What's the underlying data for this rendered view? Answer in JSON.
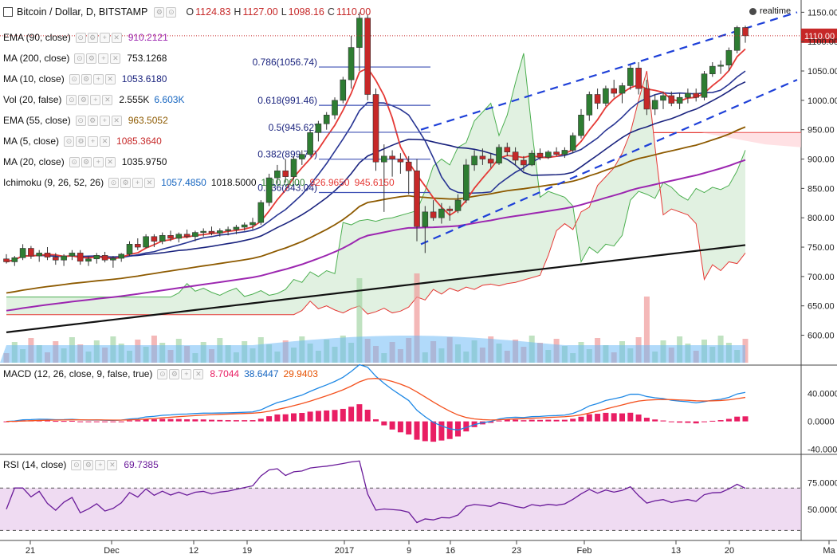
{
  "header": {
    "symbol": "Bitcoin / Dollar, D, BITSTAMP",
    "o_label": "O",
    "o": "1124.83",
    "h_label": "H",
    "h": "1127.00",
    "l_label": "L",
    "l": "1098.16",
    "c_label": "C",
    "c": "1110.00",
    "realtime": "realtime",
    "alert_icon": "alert-clock-icon"
  },
  "indicators": [
    {
      "name": "EMA (90, close)",
      "values": [
        "910.2121"
      ],
      "colors": [
        "#9c27b0"
      ]
    },
    {
      "name": "MA (200, close)",
      "values": [
        "753.1268"
      ],
      "colors": [
        "#111111"
      ]
    },
    {
      "name": "MA (10, close)",
      "values": [
        "1053.6180"
      ],
      "colors": [
        "#1a237e"
      ]
    },
    {
      "name": "Vol (20, false)",
      "values": [
        "2.555K",
        "6.603K"
      ],
      "colors": [
        "#111111",
        "#1565c0"
      ]
    },
    {
      "name": "EMA (55, close)",
      "values": [
        "963.5052"
      ],
      "colors": [
        "#8d5a00"
      ]
    },
    {
      "name": "MA (5, close)",
      "values": [
        "1085.3640"
      ],
      "colors": [
        "#c62828"
      ]
    },
    {
      "name": "MA (20, close)",
      "values": [
        "1035.9750"
      ],
      "colors": [
        "#111111"
      ]
    },
    {
      "name": "Ichimoku (9, 26, 52, 26)",
      "values": [
        "1057.4850",
        "1018.5000",
        "1110.0000",
        "926.9650",
        "945.6150"
      ],
      "colors": [
        "#1565c0",
        "#111111",
        "#2e7d32",
        "#e53935",
        "#e53935"
      ]
    }
  ],
  "macd_legend": {
    "name": "MACD (12, 26, close, 9, false, true)",
    "values": [
      "8.7044",
      "38.6447",
      "29.9403"
    ],
    "colors": [
      "#e91e63",
      "#1565c0",
      "#e65100"
    ]
  },
  "rsi_legend": {
    "name": "RSI (14, close)",
    "values": [
      "69.7385"
    ],
    "colors": [
      "#6a1b9a"
    ]
  },
  "chart_data": {
    "type": "candlestick",
    "price_axis": {
      "ticks": [
        "1150.00",
        "1100.00",
        "1050.00",
        "1000.00",
        "950.00",
        "900.00",
        "850.00",
        "800.00",
        "750.00",
        "700.00",
        "650.00",
        "600.00"
      ],
      "range": [
        560,
        1160
      ]
    },
    "last_price_label": "1110.00",
    "macd_axis": {
      "ticks": [
        "40.0000",
        "0.0000",
        "-40.0000"
      ],
      "range": [
        -45,
        75
      ]
    },
    "rsi_axis": {
      "ticks": [
        "75.0000",
        "50.0000"
      ],
      "range": [
        22,
        98
      ],
      "levels": [
        70,
        30
      ]
    },
    "x_labels": [
      "21",
      "Dec",
      "12",
      "19",
      "2017",
      "9",
      "16",
      "23",
      "Feb",
      "13",
      "20",
      "Ma"
    ],
    "fibonacci": [
      {
        "label": "0.786(1056.74)",
        "price": 1056.74
      },
      {
        "label": "0.618(991.46)",
        "price": 991.46
      },
      {
        "label": "0.5(945.62)",
        "price": 945.62
      },
      {
        "label": "0.382(899.77)",
        "price": 899.77
      },
      {
        "label": "0.236(843.04)",
        "price": 843.04
      }
    ],
    "candles": [
      [
        730,
        738,
        722,
        725
      ],
      [
        725,
        735,
        718,
        732
      ],
      [
        732,
        755,
        728,
        748
      ],
      [
        748,
        752,
        730,
        735
      ],
      [
        735,
        745,
        725,
        740
      ],
      [
        740,
        750,
        728,
        733
      ],
      [
        733,
        740,
        720,
        728
      ],
      [
        728,
        738,
        718,
        735
      ],
      [
        735,
        745,
        728,
        740
      ],
      [
        740,
        745,
        720,
        726
      ],
      [
        726,
        735,
        718,
        730
      ],
      [
        730,
        740,
        722,
        736
      ],
      [
        736,
        742,
        724,
        728
      ],
      [
        728,
        735,
        715,
        731
      ],
      [
        731,
        740,
        725,
        738
      ],
      [
        738,
        760,
        735,
        755
      ],
      [
        755,
        765,
        745,
        750
      ],
      [
        750,
        772,
        748,
        768
      ],
      [
        768,
        772,
        750,
        760
      ],
      [
        760,
        775,
        755,
        770
      ],
      [
        770,
        778,
        760,
        765
      ],
      [
        765,
        775,
        758,
        772
      ],
      [
        772,
        780,
        765,
        768
      ],
      [
        768,
        778,
        760,
        775
      ],
      [
        775,
        782,
        768,
        777
      ],
      [
        777,
        785,
        770,
        774
      ],
      [
        774,
        782,
        768,
        778
      ],
      [
        778,
        785,
        770,
        780
      ],
      [
        780,
        788,
        772,
        784
      ],
      [
        784,
        792,
        778,
        788
      ],
      [
        788,
        800,
        780,
        792
      ],
      [
        792,
        830,
        788,
        826
      ],
      [
        826,
        875,
        820,
        868
      ],
      [
        868,
        890,
        858,
        880
      ],
      [
        880,
        900,
        860,
        870
      ],
      [
        870,
        905,
        865,
        900
      ],
      [
        900,
        915,
        890,
        908
      ],
      [
        908,
        950,
        905,
        945
      ],
      [
        945,
        965,
        930,
        960
      ],
      [
        960,
        980,
        950,
        975
      ],
      [
        975,
        1005,
        968,
        1000
      ],
      [
        1000,
        1040,
        995,
        1035
      ],
      [
        1035,
        1110,
        1020,
        1090
      ],
      [
        1090,
        1150,
        1050,
        1140
      ],
      [
        1140,
        1145,
        1000,
        1010
      ],
      [
        1010,
        1020,
        880,
        895
      ],
      [
        895,
        925,
        810,
        905
      ],
      [
        905,
        915,
        870,
        900
      ],
      [
        900,
        910,
        875,
        895
      ],
      [
        895,
        905,
        840,
        880
      ],
      [
        880,
        900,
        760,
        785
      ],
      [
        785,
        820,
        740,
        810
      ],
      [
        810,
        830,
        795,
        800
      ],
      [
        800,
        825,
        790,
        815
      ],
      [
        815,
        820,
        795,
        812
      ],
      [
        812,
        840,
        808,
        830
      ],
      [
        830,
        900,
        825,
        890
      ],
      [
        890,
        915,
        880,
        905
      ],
      [
        905,
        918,
        890,
        900
      ],
      [
        900,
        910,
        885,
        893
      ],
      [
        893,
        925,
        890,
        920
      ],
      [
        920,
        928,
        905,
        912
      ],
      [
        912,
        920,
        890,
        898
      ],
      [
        898,
        905,
        880,
        890
      ],
      [
        890,
        915,
        888,
        910
      ],
      [
        910,
        918,
        898,
        903
      ],
      [
        903,
        915,
        900,
        912
      ],
      [
        912,
        920,
        905,
        908
      ],
      [
        908,
        920,
        902,
        915
      ],
      [
        915,
        945,
        910,
        940
      ],
      [
        940,
        985,
        935,
        975
      ],
      [
        975,
        1015,
        965,
        1010
      ],
      [
        1010,
        1020,
        985,
        995
      ],
      [
        995,
        1025,
        990,
        1020
      ],
      [
        1020,
        1035,
        1005,
        1012
      ],
      [
        1012,
        1030,
        995,
        1025
      ],
      [
        1025,
        1060,
        1018,
        1055
      ],
      [
        1055,
        1065,
        1010,
        1020
      ],
      [
        1020,
        1035,
        975,
        985
      ],
      [
        985,
        1010,
        975,
        1000
      ],
      [
        1000,
        1015,
        985,
        1008
      ],
      [
        1008,
        1015,
        990,
        995
      ],
      [
        995,
        1012,
        985,
        1005
      ],
      [
        1005,
        1020,
        995,
        1012
      ],
      [
        1012,
        1020,
        998,
        1005
      ],
      [
        1005,
        1050,
        1000,
        1045
      ],
      [
        1045,
        1065,
        1040,
        1058
      ],
      [
        1058,
        1068,
        1045,
        1060
      ],
      [
        1060,
        1090,
        1050,
        1085
      ],
      [
        1085,
        1127,
        1080,
        1124
      ],
      [
        1124,
        1127,
        1098,
        1110
      ]
    ]
  }
}
